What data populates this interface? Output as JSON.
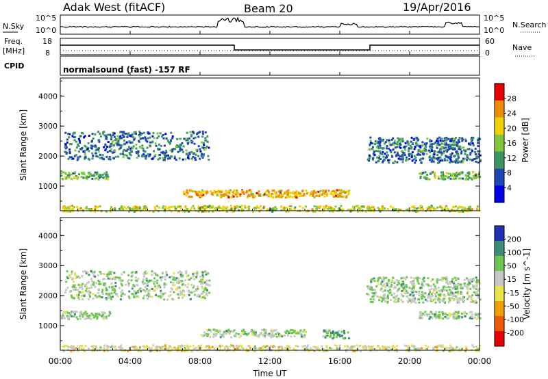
{
  "header": {
    "title": "Adak West (fitACF)",
    "beam": "Beam 20",
    "date": "19/Apr/2016"
  },
  "top_panels": {
    "nsky_label": "N.Sky",
    "nsky_ticks": [
      "10^5",
      "10^0"
    ],
    "nsearch_label": "N.Search",
    "nsearch_ticks": [
      "10^5",
      "10^0"
    ],
    "freq_label": "Freq.",
    "freq_unit": "[MHz]",
    "freq_ticks": [
      "18",
      "8"
    ],
    "nave_label": "Nave",
    "nave_ticks": [
      "60",
      "0"
    ],
    "cpid_label": "CPID",
    "cpid_text": "normalsound (fast) -157 RF"
  },
  "power_panel": {
    "ylabel": "Slant Range [km]",
    "yticks": [
      "4000",
      "3000",
      "2000",
      "1000"
    ],
    "colorbar_label": "Power [dB]",
    "colorbar_ticks": [
      "28",
      "24",
      "20",
      "16",
      "12",
      "8",
      "4"
    ],
    "colors": [
      "#e60000",
      "#f08c00",
      "#f0d200",
      "#82c83c",
      "#3c9664",
      "#1e46b4",
      "#0000e6"
    ]
  },
  "velocity_panel": {
    "ylabel": "Slant Range [km]",
    "yticks": [
      "4000",
      "3000",
      "2000",
      "1000"
    ],
    "colorbar_label": "Velocity [m s^-1]",
    "colorbar_ticks": [
      "200",
      "100",
      "50",
      "15",
      "-15",
      "-50",
      "-100",
      "-200"
    ],
    "colors": [
      "#1e32b4",
      "#3c8c78",
      "#6ec850",
      "#c8c8c8",
      "#e6e64b",
      "#f0a000",
      "#f05a00",
      "#e60000"
    ]
  },
  "xaxis": {
    "label": "Time UT",
    "ticks": [
      "00:00",
      "04:00",
      "08:00",
      "12:00",
      "16:00",
      "20:00",
      "00:00"
    ]
  },
  "chart_data": [
    {
      "type": "heatmap",
      "title": "",
      "xlabel": "",
      "ylabel": "Slant Range [km]",
      "xlim": [
        0,
        24
      ],
      "ylim": [
        180,
        4600
      ],
      "colorbar": "Power [dB]",
      "regions": [
        {
          "t": [
            0.0,
            2.8
          ],
          "r": [
            1250,
            1500
          ],
          "level": 4
        },
        {
          "t": [
            0.2,
            8.5
          ],
          "r": [
            1900,
            2850
          ],
          "level": 5
        },
        {
          "t": [
            7.0,
            16.5
          ],
          "r": [
            650,
            900
          ],
          "level": 2
        },
        {
          "t": [
            17.5,
            24.0
          ],
          "r": [
            1800,
            2650
          ],
          "level": 5
        },
        {
          "t": [
            20.5,
            24.0
          ],
          "r": [
            1250,
            1500
          ],
          "level": 4
        },
        {
          "t": [
            0.0,
            24.0
          ],
          "r": [
            180,
            380
          ],
          "level": 3
        }
      ]
    },
    {
      "type": "heatmap",
      "title": "",
      "xlabel": "Time UT",
      "ylabel": "Slant Range [km]",
      "xlim": [
        0,
        24
      ],
      "ylim": [
        180,
        4600
      ],
      "colorbar": "Velocity [m s^-1]",
      "regions": [
        {
          "t": [
            0.0,
            2.8
          ],
          "r": [
            1250,
            1500
          ],
          "level": 3
        },
        {
          "t": [
            0.2,
            8.5
          ],
          "r": [
            1900,
            2850
          ],
          "level": 3
        },
        {
          "t": [
            8.0,
            14.0
          ],
          "r": [
            650,
            900
          ],
          "level": 3
        },
        {
          "t": [
            15.0,
            16.5
          ],
          "r": [
            600,
            880
          ],
          "level": 2
        },
        {
          "t": [
            17.5,
            24.0
          ],
          "r": [
            1800,
            2650
          ],
          "level": 3
        },
        {
          "t": [
            20.5,
            24.0
          ],
          "r": [
            1250,
            1500
          ],
          "level": 3
        },
        {
          "t": [
            0.0,
            24.0
          ],
          "r": [
            180,
            380
          ],
          "level": 4
        }
      ]
    }
  ]
}
